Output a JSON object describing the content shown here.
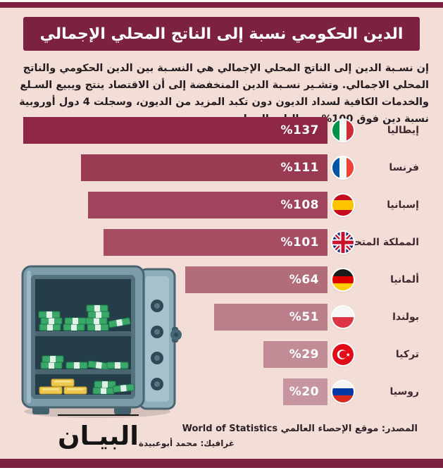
{
  "header": {
    "title": "الدين الحكومي نسبة إلى الناتج المحلي الإجمالي"
  },
  "intro": {
    "text": "إن نسـبة الدين إلى الناتج المحلي الإجمالي هي النسـبة بين الدين الحكومي والناتج المحلي الاجمالي. وتشـير نسـبة الدين المنخفضة إلى أن الاقتصاد ينتج ويبيع السـلع والخدمات الكافية لسداد الديون دون تكبد المزيد من الديون، وسجلت 4 دول أوروبية نسبة دين فوق 100% من الناتج المحلي."
  },
  "chart_data": {
    "type": "bar",
    "orientation": "horizontal",
    "direction": "rtl",
    "title": "الدين الحكومي نسبة إلى الناتج المحلي الإجمالي",
    "categories": [
      "إيطاليا",
      "فرنسا",
      "إسبانيا",
      "المملكة المتحدة",
      "ألمانيا",
      "بولندا",
      "تركيا",
      "روسيا"
    ],
    "values": [
      137,
      111,
      108,
      101,
      64,
      51,
      29,
      20
    ],
    "value_labels": [
      "%137",
      "%111",
      "%108",
      "%101",
      "%64",
      "%51",
      "%29",
      "%20"
    ],
    "flags": [
      "italy",
      "france",
      "spain",
      "uk",
      "germany",
      "poland",
      "turkey",
      "russia"
    ],
    "bar_colors": [
      "#8e2745",
      "#9a3a53",
      "#a1435c",
      "#a74d63",
      "#b26d7b",
      "#b97e8a",
      "#c18c96",
      "#c795a0"
    ],
    "xlim": [
      0,
      140
    ],
    "grid": false,
    "legend": false
  },
  "footer": {
    "source": "المصدر: موقع الإحصاء العالمي World of Statistics",
    "credit": "غرافيك: محمد أبوعبيدة",
    "logo": "البيـان"
  },
  "colors": {
    "background": "#f2ddd7",
    "accent": "#7c2142",
    "bar_text": "#ffffff",
    "body_text": "#241c20"
  }
}
